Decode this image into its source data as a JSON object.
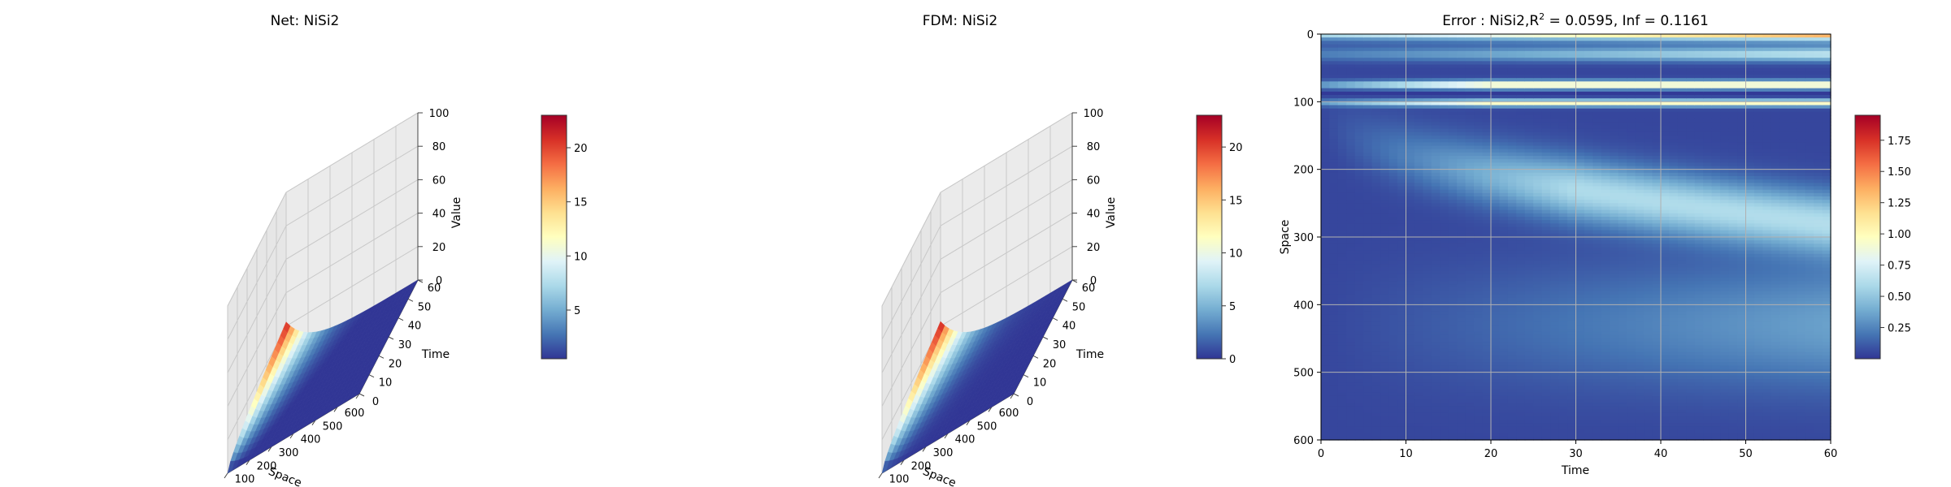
{
  "chart_data": [
    {
      "type": "surface3d",
      "title": "Net: NiSi2",
      "xlabel": "Space",
      "ylabel": "Time",
      "zlabel": "Value",
      "xlim": [
        0,
        600
      ],
      "ylim": [
        0,
        60
      ],
      "zlim": [
        0,
        100
      ],
      "xticks": [
        0,
        100,
        200,
        300,
        400,
        500,
        600
      ],
      "yticks": [
        0,
        10,
        20,
        30,
        40,
        50,
        60
      ],
      "zticks": [
        0,
        20,
        40,
        60,
        80,
        100
      ],
      "surface": {
        "description_free_model": true,
        "peak_value": 22.5,
        "peak_space": 0,
        "peak_time": 60,
        "space_decay_length": 100,
        "colormap": "RdYlBu_r"
      },
      "colorbar": {
        "min": 0.5,
        "max": 23,
        "ticks": [
          5,
          10,
          15,
          20
        ]
      }
    },
    {
      "type": "surface3d",
      "title": "FDM: NiSi2",
      "xlabel": "Space",
      "ylabel": "Time",
      "zlabel": "Value",
      "xlim": [
        0,
        600
      ],
      "ylim": [
        0,
        60
      ],
      "zlim": [
        0,
        100
      ],
      "xticks": [
        0,
        100,
        200,
        300,
        400,
        500,
        600
      ],
      "yticks": [
        0,
        10,
        20,
        30,
        40,
        50,
        60
      ],
      "zticks": [
        0,
        20,
        40,
        60,
        80,
        100
      ],
      "surface": {
        "peak_value": 22.8,
        "peak_space": 0,
        "peak_time": 60,
        "space_decay_length": 100,
        "colormap": "RdYlBu_r"
      },
      "colorbar": {
        "min": 0,
        "max": 23,
        "ticks": [
          0,
          5,
          10,
          15,
          20
        ]
      }
    },
    {
      "type": "heatmap",
      "title_main": "Error : NiSi2,",
      "title_r2_base": "R",
      "title_r2_sup": "2",
      "title_rest": " = 0.0595, Inf = 0.1161",
      "xlabel": "Time",
      "ylabel": "Space",
      "xlim": [
        0,
        60
      ],
      "ylim": [
        600,
        0
      ],
      "xticks": [
        0,
        10,
        20,
        30,
        40,
        50,
        60
      ],
      "yticks": [
        0,
        100,
        200,
        300,
        400,
        500,
        600
      ],
      "grid": true,
      "colormap": "RdYlBu_r",
      "colorbar": {
        "min": 0,
        "max": 1.95,
        "ticks": [
          0.25,
          0.5,
          0.75,
          1.0,
          1.25,
          1.5,
          1.75
        ],
        "tick_labels": [
          "0.25",
          "0.50",
          "0.75",
          "1.00",
          "1.25",
          "1.50",
          "1.75"
        ]
      },
      "features": {
        "top_band_max": 1.95,
        "band_at_space_75": 1.0,
        "low_band_space": 88,
        "band_at_space_100": 0.9,
        "arc_band_value": 0.55,
        "max_error": 1.95
      }
    }
  ]
}
